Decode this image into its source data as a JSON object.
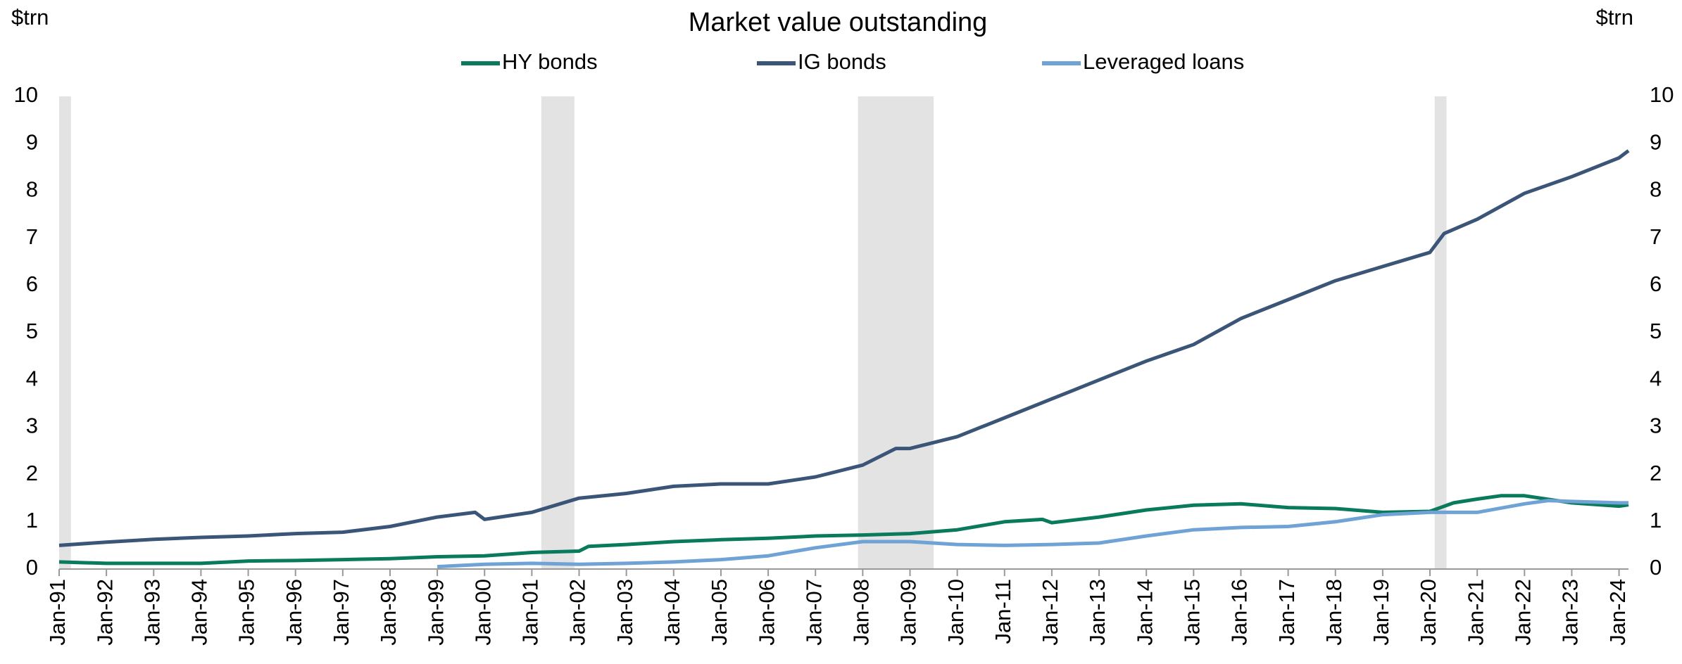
{
  "chart_data": {
    "type": "line",
    "title": "Market value outstanding",
    "ylabel": "$trn",
    "y2label": "$trn",
    "xlim": [
      1991,
      2024.2
    ],
    "ylim": [
      0,
      10
    ],
    "yticks": [
      0,
      1,
      2,
      3,
      4,
      5,
      6,
      7,
      8,
      9,
      10
    ],
    "y2lim": [
      0,
      10
    ],
    "y2ticks": [
      0,
      1,
      2,
      3,
      4,
      5,
      6,
      7,
      8,
      9,
      10
    ],
    "xticks": [
      {
        "value": 1991,
        "label": "Jan-91"
      },
      {
        "value": 1992,
        "label": "Jan-92"
      },
      {
        "value": 1993,
        "label": "Jan-93"
      },
      {
        "value": 1994,
        "label": "Jan-94"
      },
      {
        "value": 1995,
        "label": "Jan-95"
      },
      {
        "value": 1996,
        "label": "Jan-96"
      },
      {
        "value": 1997,
        "label": "Jan-97"
      },
      {
        "value": 1998,
        "label": "Jan-98"
      },
      {
        "value": 1999,
        "label": "Jan-99"
      },
      {
        "value": 2000,
        "label": "Jan-00"
      },
      {
        "value": 2001,
        "label": "Jan-01"
      },
      {
        "value": 2002,
        "label": "Jan-02"
      },
      {
        "value": 2003,
        "label": "Jan-03"
      },
      {
        "value": 2004,
        "label": "Jan-04"
      },
      {
        "value": 2005,
        "label": "Jan-05"
      },
      {
        "value": 2006,
        "label": "Jan-06"
      },
      {
        "value": 2007,
        "label": "Jan-07"
      },
      {
        "value": 2008,
        "label": "Jan-08"
      },
      {
        "value": 2009,
        "label": "Jan-09"
      },
      {
        "value": 2010,
        "label": "Jan-10"
      },
      {
        "value": 2011,
        "label": "Jan-11"
      },
      {
        "value": 2012,
        "label": "Jan-12"
      },
      {
        "value": 2013,
        "label": "Jan-13"
      },
      {
        "value": 2014,
        "label": "Jan-14"
      },
      {
        "value": 2015,
        "label": "Jan-15"
      },
      {
        "value": 2016,
        "label": "Jan-16"
      },
      {
        "value": 2017,
        "label": "Jan-17"
      },
      {
        "value": 2018,
        "label": "Jan-18"
      },
      {
        "value": 2019,
        "label": "Jan-19"
      },
      {
        "value": 2020,
        "label": "Jan-20"
      },
      {
        "value": 2021,
        "label": "Jan-21"
      },
      {
        "value": 2022,
        "label": "Jan-22"
      },
      {
        "value": 2023,
        "label": "Jan-23"
      },
      {
        "value": 2024,
        "label": "Jan-24"
      }
    ],
    "recessions": [
      [
        1991,
        1991.25
      ],
      [
        2001.2,
        2001.9
      ],
      [
        2007.9,
        2009.5
      ],
      [
        2020.1,
        2020.35
      ]
    ],
    "recession_color": "#e3e3e3",
    "series": [
      {
        "name": "HY bonds",
        "color": "#0a7a5c",
        "x": [
          1991,
          1992,
          1993,
          1994,
          1995,
          1996,
          1997,
          1998,
          1999,
          2000,
          2001,
          2002,
          2002.2,
          2003,
          2004,
          2005,
          2006,
          2007,
          2008,
          2009,
          2010,
          2011,
          2011.8,
          2012,
          2013,
          2014,
          2015,
          2016,
          2017,
          2018,
          2019,
          2020,
          2020.5,
          2021,
          2021.5,
          2022,
          2023,
          2024,
          2024.2
        ],
        "values": [
          0.15,
          0.12,
          0.12,
          0.12,
          0.17,
          0.18,
          0.2,
          0.22,
          0.26,
          0.28,
          0.35,
          0.38,
          0.48,
          0.52,
          0.58,
          0.62,
          0.65,
          0.7,
          0.72,
          0.75,
          0.83,
          1.0,
          1.05,
          0.98,
          1.1,
          1.25,
          1.35,
          1.38,
          1.3,
          1.28,
          1.2,
          1.22,
          1.4,
          1.48,
          1.55,
          1.55,
          1.4,
          1.33,
          1.36
        ]
      },
      {
        "name": "IG bonds",
        "color": "#3b5578",
        "x": [
          1991,
          1992,
          1993,
          1994,
          1995,
          1996,
          1997,
          1998,
          1999,
          1999.8,
          2000,
          2001,
          2002,
          2003,
          2004,
          2005,
          2006,
          2007,
          2008,
          2008.7,
          2009,
          2010,
          2011,
          2012,
          2013,
          2014,
          2015,
          2016,
          2017,
          2018,
          2019,
          2020,
          2020.3,
          2021,
          2022,
          2023,
          2024,
          2024.2
        ],
        "values": [
          0.5,
          0.57,
          0.63,
          0.67,
          0.7,
          0.75,
          0.78,
          0.9,
          1.1,
          1.2,
          1.05,
          1.2,
          1.5,
          1.6,
          1.75,
          1.8,
          1.8,
          1.95,
          2.2,
          2.55,
          2.55,
          2.8,
          3.2,
          3.6,
          4.0,
          4.4,
          4.75,
          5.3,
          5.7,
          6.1,
          6.4,
          6.7,
          7.1,
          7.4,
          7.95,
          8.3,
          8.7,
          8.85
        ]
      },
      {
        "name": "Leveraged loans",
        "color": "#6fa3d6",
        "x": [
          1999,
          2000,
          2001,
          2002,
          2003,
          2004,
          2005,
          2006,
          2007,
          2008,
          2009,
          2010,
          2011,
          2012,
          2013,
          2014,
          2015,
          2016,
          2017,
          2018,
          2019,
          2020,
          2021,
          2022,
          2022.5,
          2023,
          2024,
          2024.2
        ],
        "values": [
          0.05,
          0.1,
          0.12,
          0.1,
          0.12,
          0.15,
          0.2,
          0.28,
          0.45,
          0.58,
          0.58,
          0.52,
          0.5,
          0.52,
          0.55,
          0.7,
          0.83,
          0.88,
          0.9,
          1.0,
          1.15,
          1.2,
          1.2,
          1.38,
          1.45,
          1.43,
          1.4,
          1.4
        ]
      }
    ]
  }
}
